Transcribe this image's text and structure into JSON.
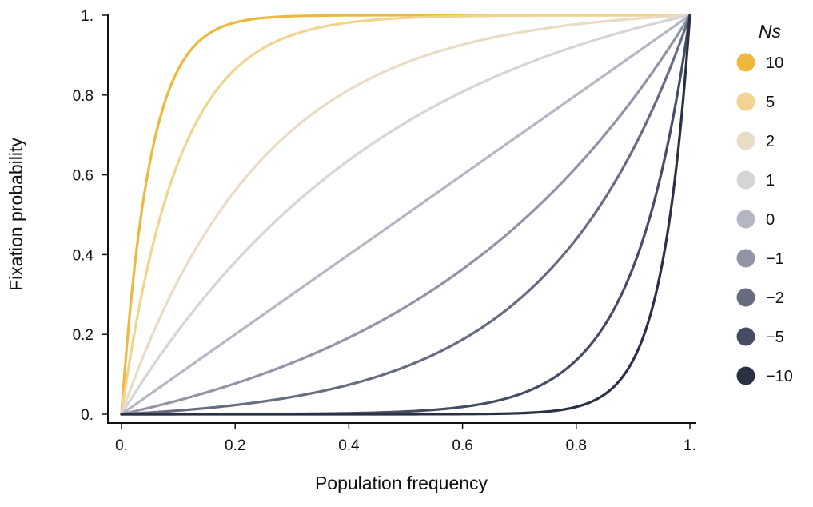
{
  "chart_data": {
    "type": "line",
    "title": "",
    "xlabel": "Population frequency",
    "ylabel": "Fixation probability",
    "xlim": [
      0,
      1
    ],
    "ylim": [
      0,
      1
    ],
    "grid": false,
    "legend_position": "right",
    "legend_title": "Ns",
    "x_ticks": [
      {
        "value": 0,
        "label": "0."
      },
      {
        "value": 0.2,
        "label": "0.2"
      },
      {
        "value": 0.4,
        "label": "0.4"
      },
      {
        "value": 0.6,
        "label": "0.6"
      },
      {
        "value": 0.8,
        "label": "0.8"
      },
      {
        "value": 1,
        "label": "1."
      }
    ],
    "y_ticks": [
      {
        "value": 0,
        "label": "0."
      },
      {
        "value": 0.2,
        "label": "0.2"
      },
      {
        "value": 0.4,
        "label": "0.4"
      },
      {
        "value": 0.6,
        "label": "0.6"
      },
      {
        "value": 0.8,
        "label": "0.8"
      },
      {
        "value": 1,
        "label": "1."
      }
    ],
    "x": [
      0,
      0.02,
      0.04,
      0.06,
      0.08,
      0.1,
      0.15,
      0.2,
      0.25,
      0.3,
      0.35,
      0.4,
      0.45,
      0.5,
      0.55,
      0.6,
      0.65,
      0.7,
      0.75,
      0.8,
      0.85,
      0.9,
      0.92,
      0.94,
      0.96,
      0.98,
      1
    ],
    "series": [
      {
        "name": "10",
        "ns": 10,
        "color": "#EDB83D",
        "values": [
          0,
          0.55,
          0.8,
          0.909,
          0.959,
          0.982,
          0.998,
          1.0,
          1.0,
          1.0,
          1.0,
          1.0,
          1.0,
          1.0,
          1.0,
          1.0,
          1.0,
          1.0,
          1.0,
          1.0,
          1.0,
          1.0,
          1.0,
          1.0,
          1.0,
          1.0,
          1
        ]
      },
      {
        "name": "5",
        "ns": 5,
        "color": "#F2D490",
        "values": [
          0,
          0.33,
          0.55,
          0.699,
          0.798,
          0.865,
          0.95,
          0.982,
          0.993,
          0.998,
          0.999,
          1.0,
          1.0,
          1.0,
          1.0,
          1.0,
          1.0,
          1.0,
          1.0,
          1.0,
          1.0,
          1.0,
          1.0,
          1.0,
          1.0,
          1.0,
          1
        ]
      },
      {
        "name": "2",
        "ns": 2,
        "color": "#E8DDC4",
        "values": [
          0,
          0.143,
          0.273,
          0.39,
          0.494,
          0.587,
          0.774,
          0.865,
          0.92,
          0.952,
          0.971,
          0.982,
          0.989,
          0.993,
          0.996,
          0.998,
          0.998,
          0.999,
          0.999,
          1.0,
          1.0,
          1.0,
          1.0,
          1.0,
          1.0,
          1.0,
          1
        ]
      },
      {
        "name": "1",
        "ns": 1,
        "color": "#D5D5D5",
        "values": [
          0,
          0.076,
          0.149,
          0.218,
          0.284,
          0.346,
          0.489,
          0.601,
          0.703,
          0.776,
          0.836,
          0.88,
          0.915,
          0.94,
          0.958,
          0.97,
          0.979,
          0.986,
          0.99,
          0.993,
          0.995,
          0.996,
          0.997,
          0.998,
          0.998,
          0.999,
          1
        ]
      },
      {
        "name": "0",
        "ns": 0,
        "color": "#B4B6C3",
        "values": [
          0,
          0.02,
          0.04,
          0.06,
          0.08,
          0.1,
          0.15,
          0.2,
          0.25,
          0.3,
          0.35,
          0.4,
          0.45,
          0.5,
          0.55,
          0.6,
          0.65,
          0.7,
          0.75,
          0.8,
          0.85,
          0.9,
          0.92,
          0.94,
          0.96,
          0.98,
          1
        ]
      },
      {
        "name": "−1",
        "ns": -1,
        "color": "#9194A5",
        "values": [
          0,
          0.001,
          0.002,
          0.004,
          0.005,
          0.007,
          0.011,
          0.016,
          0.021,
          0.026,
          0.032,
          0.039,
          0.047,
          0.06,
          0.075,
          0.092,
          0.114,
          0.141,
          0.175,
          0.217,
          0.264,
          0.323,
          0.366,
          0.414,
          0.467,
          0.526,
          1
        ]
      },
      {
        "name": "−2",
        "ns": -2,
        "color": "#676C80",
        "values": [
          0,
          0.0,
          0.0,
          0.0,
          0.0,
          0.0,
          0.0,
          0.0,
          0.0,
          0.0,
          0.001,
          0.001,
          0.001,
          0.002,
          0.003,
          0.005,
          0.008,
          0.012,
          0.018,
          0.026,
          0.04,
          0.06,
          0.07,
          0.083,
          0.097,
          0.112,
          1
        ]
      },
      {
        "name": "−5",
        "ns": -5,
        "color": "#464C63",
        "values": [
          0,
          0.0,
          0.0,
          0.0,
          0.0,
          0.0,
          0.0,
          0.0,
          0.0,
          0.0,
          0.0,
          0.0,
          0.0,
          0.0,
          0.001,
          0.002,
          0.004,
          0.008,
          0.015,
          0.033,
          0.074,
          0.155,
          0.219,
          0.301,
          0.419,
          0.595,
          1
        ]
      },
      {
        "name": "−10",
        "ns": -10,
        "color": "#2B3145",
        "values": [
          0,
          0.0,
          0.0,
          0.0,
          0.0,
          0.0,
          0.0,
          0.0,
          0.0,
          0.0,
          0.0,
          0.0,
          0.0,
          0.0,
          0.0,
          0.0,
          0.0,
          0.0,
          0.001,
          0.002,
          0.007,
          0.018,
          0.033,
          0.054,
          0.122,
          0.32,
          1
        ]
      }
    ]
  }
}
